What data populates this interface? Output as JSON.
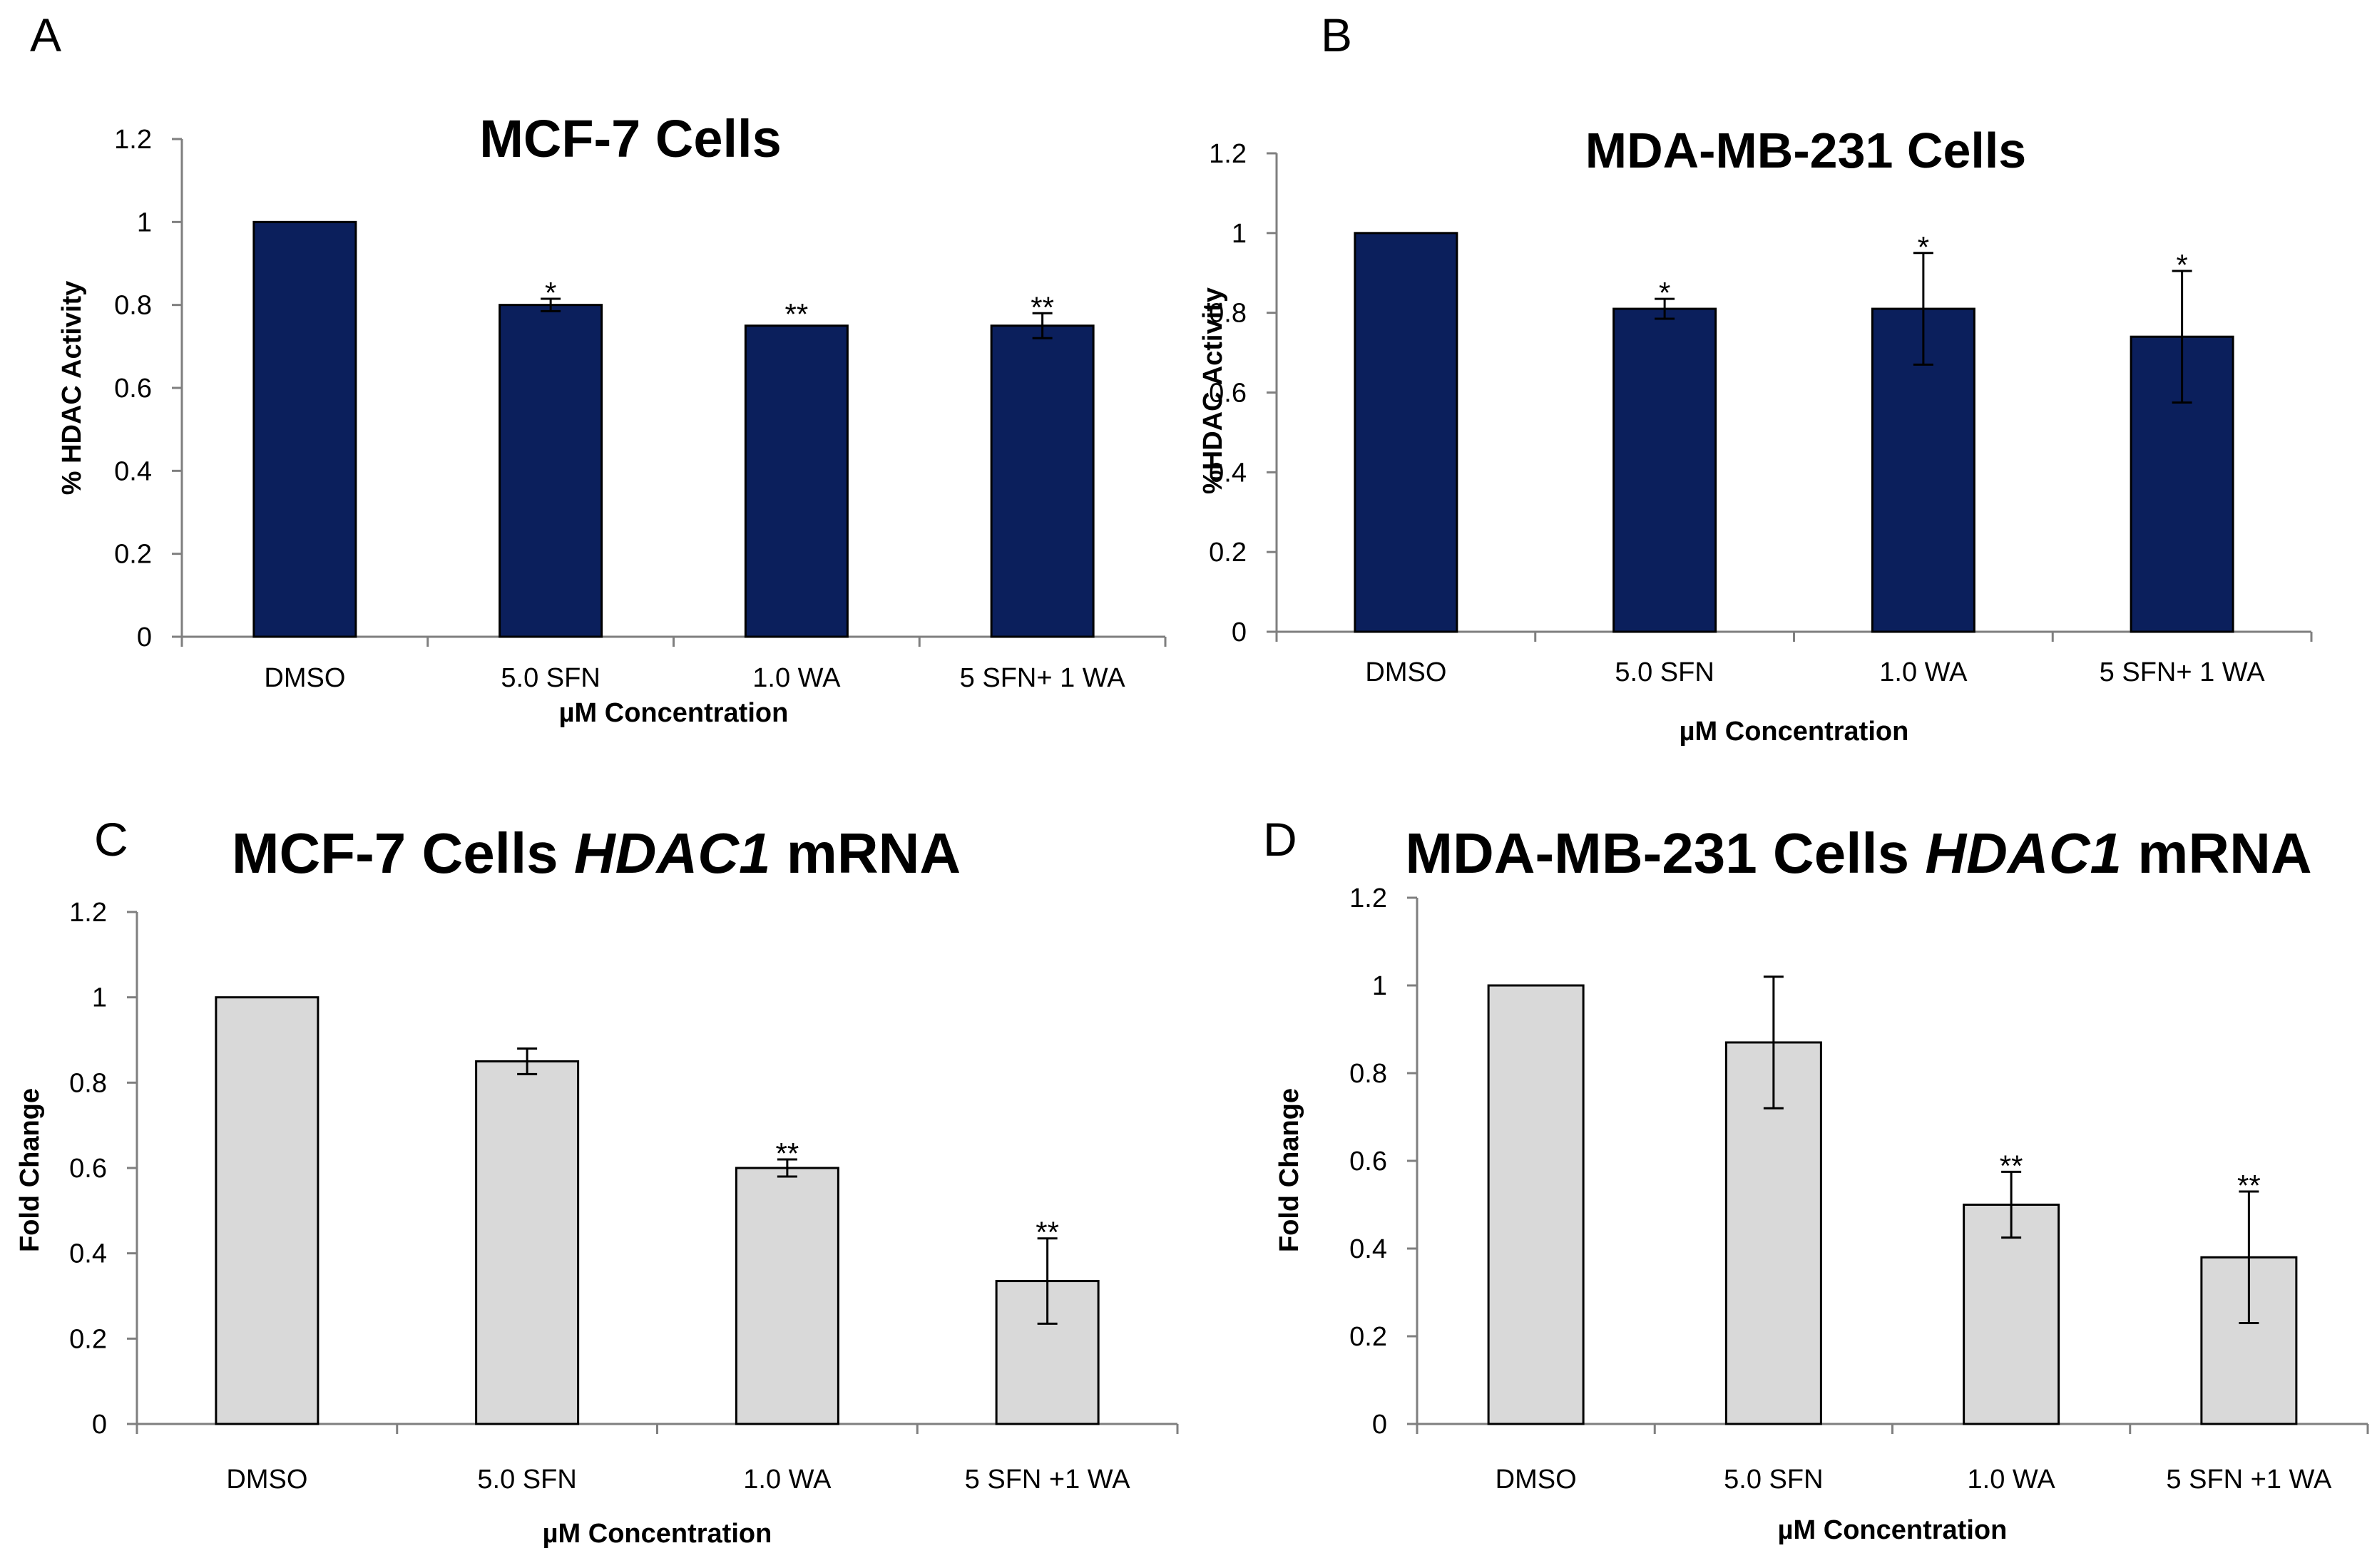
{
  "chart_data": [
    {
      "panel": "A",
      "type": "bar",
      "title": "MCF-7 Cells",
      "xlabel": "µM Concentration",
      "ylabel": "% HDAC Activity",
      "ylim": [
        0,
        1.2
      ],
      "yticks": [
        "0",
        "0.2",
        "0.4",
        "0.6",
        "0.8",
        "1",
        "1.2"
      ],
      "categories": [
        "DMSO",
        "5.0 SFN",
        "1.0 WA",
        "5 SFN+ 1 WA"
      ],
      "values": [
        1.0,
        0.8,
        0.75,
        0.75
      ],
      "errors": [
        0,
        0.015,
        0,
        0.03
      ],
      "significance": [
        "",
        "*",
        "**",
        "**"
      ],
      "color": "#0b1f5c"
    },
    {
      "panel": "B",
      "type": "bar",
      "title": "MDA-MB-231 Cells",
      "xlabel": "µM Concentration",
      "ylabel": "%HDAC Activity",
      "ylim": [
        0,
        1.2
      ],
      "yticks": [
        "0",
        "0.2",
        "0.4",
        "0.6",
        "0.8",
        "1",
        "1.2"
      ],
      "categories": [
        "DMSO",
        "5.0 SFN",
        "1.0 WA",
        "5 SFN+ 1 WA"
      ],
      "values": [
        1.0,
        0.81,
        0.81,
        0.74
      ],
      "errors": [
        0,
        0.025,
        0.14,
        0.165
      ],
      "significance": [
        "",
        "*",
        "*",
        "*"
      ],
      "color": "#0b1f5c"
    },
    {
      "panel": "C",
      "type": "bar",
      "title": "MCF-7 Cells",
      "title_italic": "HDAC1",
      "title_suffix": "mRNA",
      "xlabel": "µM Concentration",
      "ylabel": "Fold Change",
      "ylim": [
        0,
        1.2
      ],
      "yticks": [
        "0",
        "0.2",
        "0.4",
        "0.6",
        "0.8",
        "1",
        "1.2"
      ],
      "categories": [
        "DMSO",
        "5.0 SFN",
        "1.0 WA",
        "5 SFN +1 WA"
      ],
      "values": [
        1.0,
        0.85,
        0.6,
        0.335
      ],
      "errors": [
        0,
        0.03,
        0.02,
        0.1
      ],
      "significance": [
        "",
        "",
        "**",
        "**"
      ],
      "color": "#d9d9d9"
    },
    {
      "panel": "D",
      "type": "bar",
      "title": "MDA-MB-231 Cells",
      "title_italic": "HDAC1",
      "title_suffix": "mRNA",
      "xlabel": "µM Concentration",
      "ylabel": "Fold Change",
      "ylim": [
        0,
        1.2
      ],
      "yticks": [
        "0",
        "0.2",
        "0.4",
        "0.6",
        "0.8",
        "1",
        "1.2"
      ],
      "categories": [
        "DMSO",
        "5.0 SFN",
        "1.0 WA",
        "5 SFN +1 WA"
      ],
      "values": [
        1.0,
        0.87,
        0.5,
        0.38
      ],
      "errors": [
        0,
        0.15,
        0.075,
        0.15
      ],
      "significance": [
        "",
        "",
        "**",
        "**"
      ],
      "color": "#d9d9d9"
    }
  ]
}
